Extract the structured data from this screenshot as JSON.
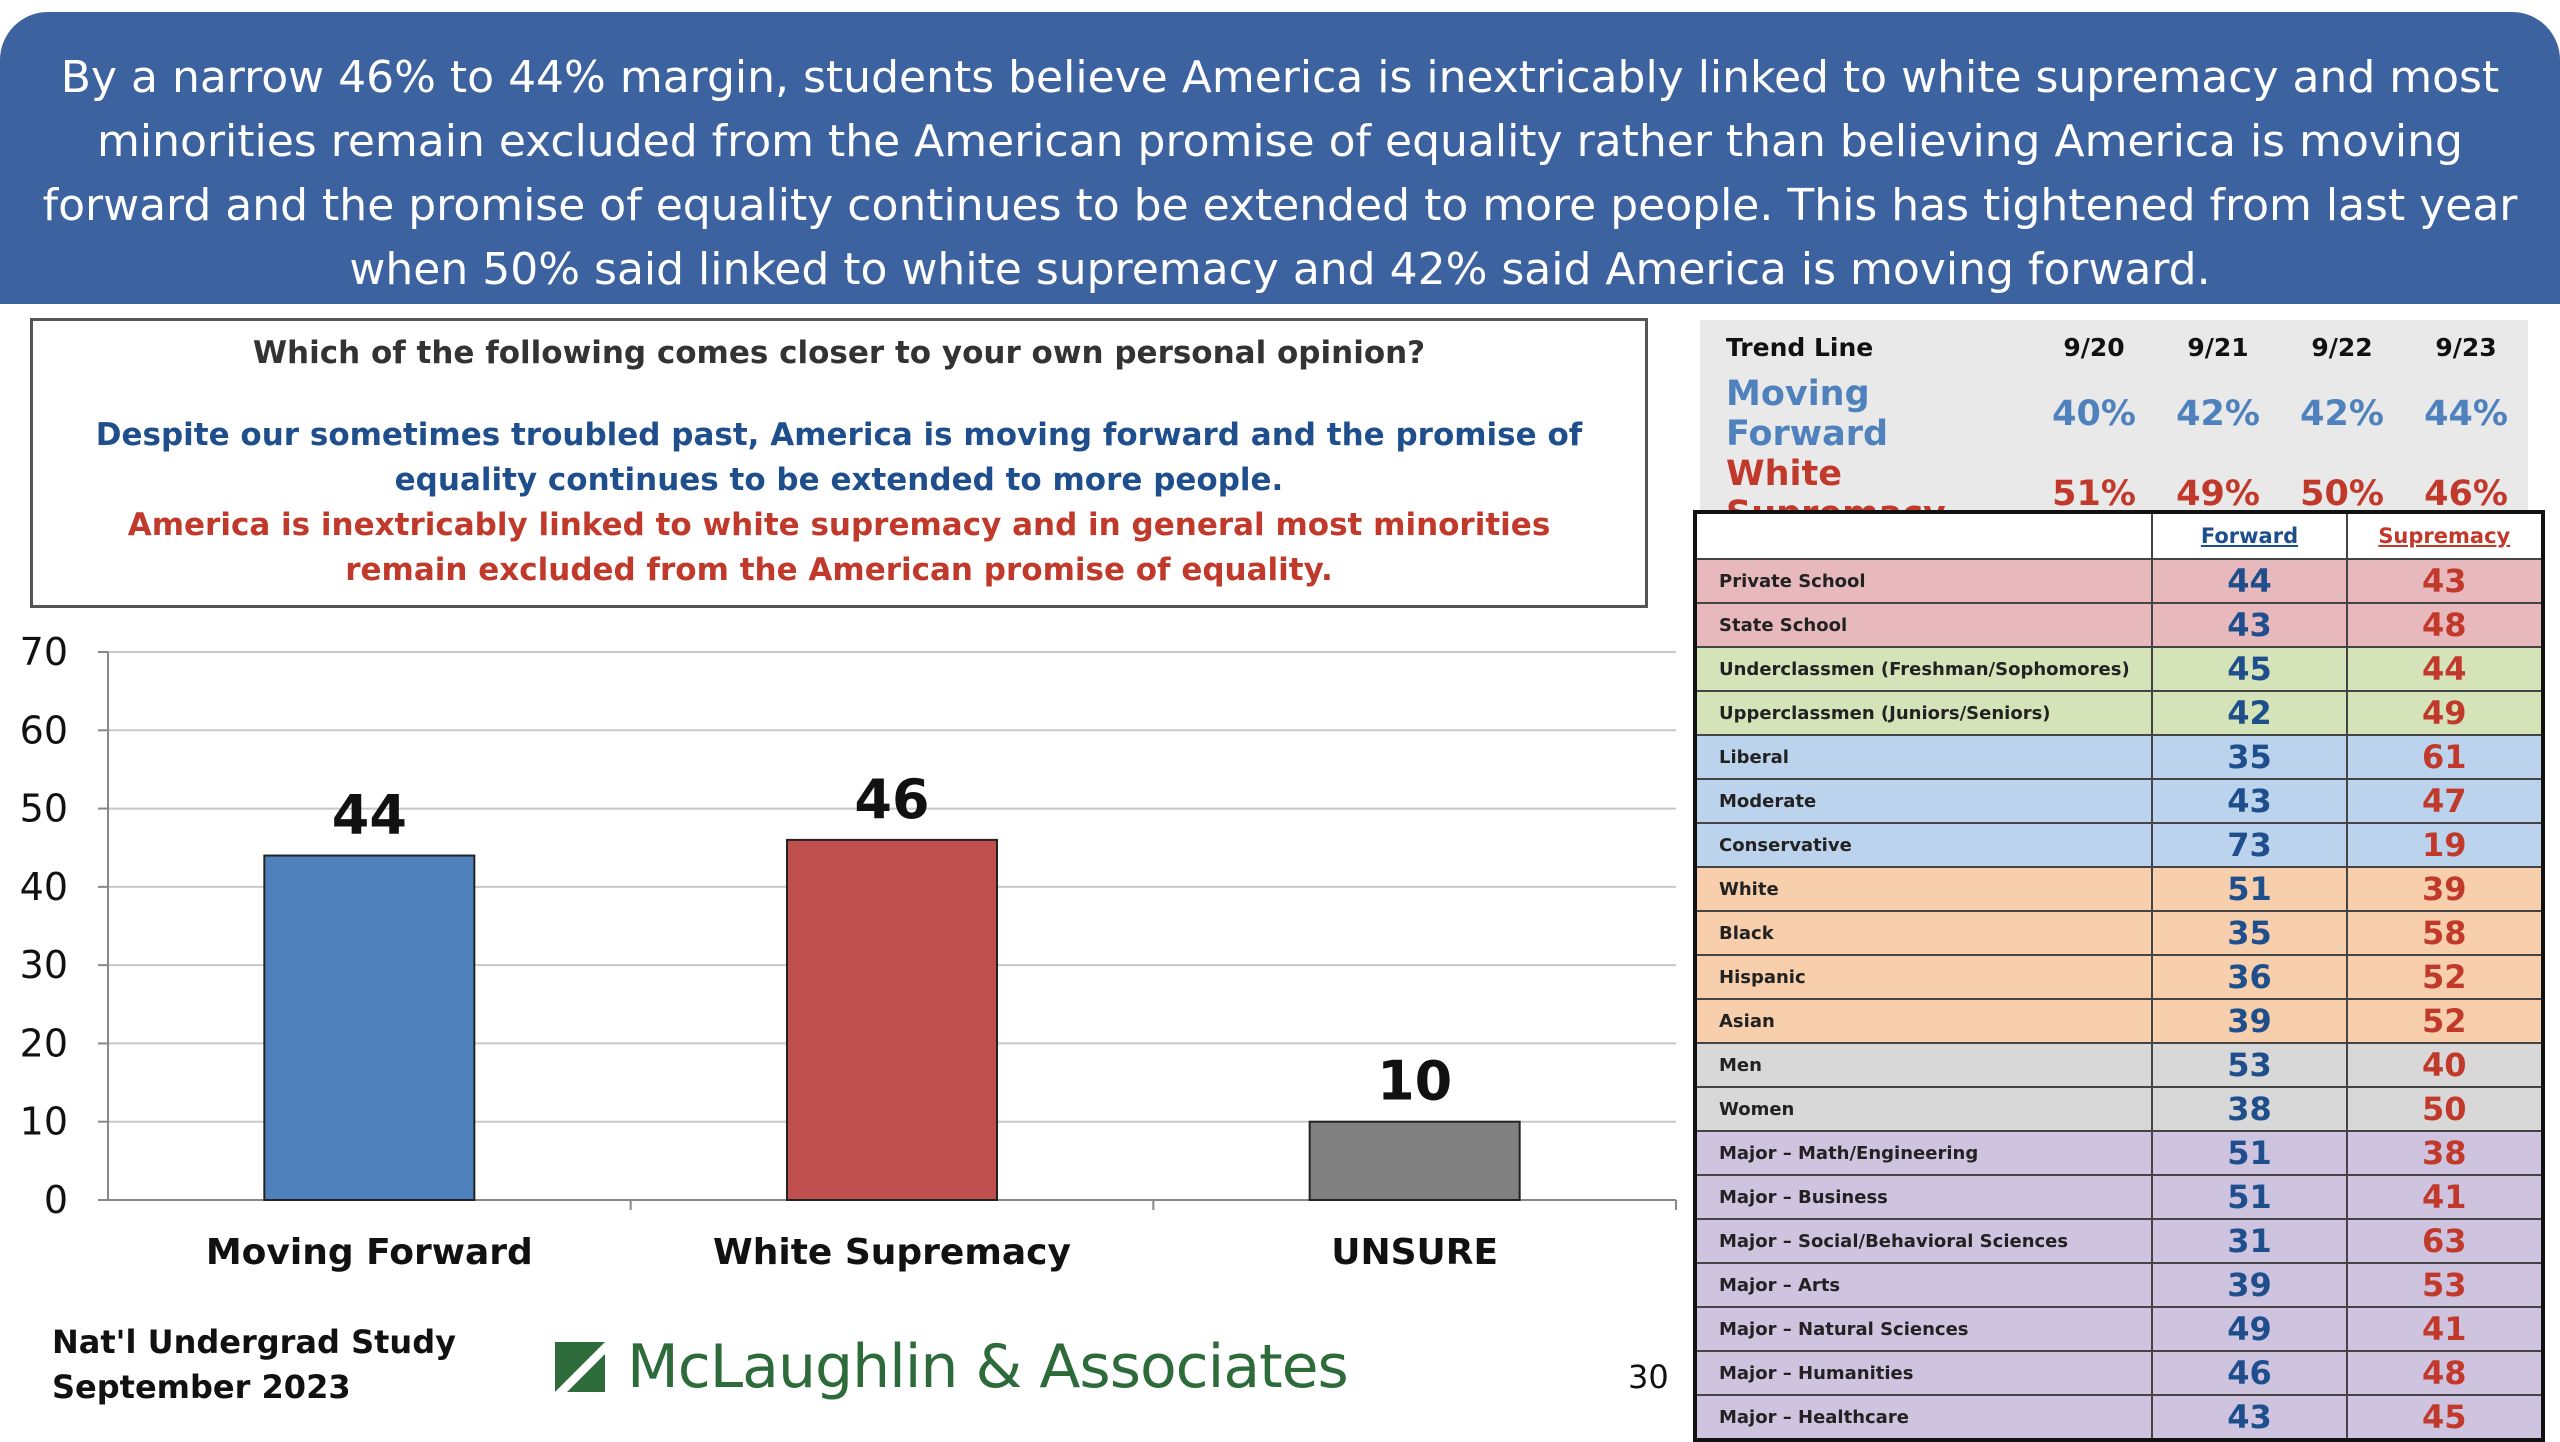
{
  "banner": {
    "text": "By a narrow 46% to 44% margin, students believe America is inextricably linked to white supremacy and most minorities remain excluded from the American promise of equality rather than believing America is moving forward and the promise of equality continues to be extended to more people. This has tightened from last year when 50% said linked to white supremacy and 42% said America is moving forward."
  },
  "question": {
    "prompt": "Which of the following comes closer to your own personal opinion?",
    "forward_statement": "Despite our sometimes troubled past, America is moving forward and the promise of equality continues to be extended to more people.",
    "supremacy_statement": "America is inextricably linked to white supremacy and in general most minorities remain excluded from the American promise of equality."
  },
  "colors": {
    "forward": "#4f81bd",
    "supremacy": "#c0504d",
    "unsure": "#808080",
    "forward_text": "#1f4e8c",
    "supremacy_text": "#c0392b"
  },
  "chart_data": {
    "type": "bar",
    "categories": [
      "Moving Forward",
      "White Supremacy",
      "UNSURE"
    ],
    "values": [
      44,
      46,
      10
    ],
    "data_labels": [
      "44",
      "46",
      "10"
    ],
    "ylim": [
      0,
      70
    ],
    "yticks": [
      0,
      10,
      20,
      30,
      40,
      50,
      60,
      70
    ],
    "grid": true
  },
  "trend": {
    "header": "Trend Line",
    "dates": [
      "9/20",
      "9/21",
      "9/22",
      "9/23"
    ],
    "rows": [
      {
        "label": "Moving Forward",
        "values": [
          "40%",
          "42%",
          "42%",
          "44%"
        ]
      },
      {
        "label": "White Supremacy",
        "values": [
          "51%",
          "49%",
          "50%",
          "46%"
        ]
      }
    ]
  },
  "subgroups": {
    "col_forward": "Forward",
    "col_supremacy": "Supremacy",
    "rows": [
      {
        "name": "Private School",
        "forward": "44",
        "supremacy": "43",
        "group": "red"
      },
      {
        "name": "State School",
        "forward": "43",
        "supremacy": "48",
        "group": "red"
      },
      {
        "name": "Underclassmen (Freshman/Sophomores)",
        "forward": "45",
        "supremacy": "44",
        "group": "green"
      },
      {
        "name": "Upperclassmen (Juniors/Seniors)",
        "forward": "42",
        "supremacy": "49",
        "group": "green"
      },
      {
        "name": "Liberal",
        "forward": "35",
        "supremacy": "61",
        "group": "blue"
      },
      {
        "name": "Moderate",
        "forward": "43",
        "supremacy": "47",
        "group": "blue"
      },
      {
        "name": "Conservative",
        "forward": "73",
        "supremacy": "19",
        "group": "blue"
      },
      {
        "name": "White",
        "forward": "51",
        "supremacy": "39",
        "group": "orange"
      },
      {
        "name": "Black",
        "forward": "35",
        "supremacy": "58",
        "group": "orange"
      },
      {
        "name": "Hispanic",
        "forward": "36",
        "supremacy": "52",
        "group": "orange"
      },
      {
        "name": "Asian",
        "forward": "39",
        "supremacy": "52",
        "group": "orange"
      },
      {
        "name": "Men",
        "forward": "53",
        "supremacy": "40",
        "group": "gray"
      },
      {
        "name": "Women",
        "forward": "38",
        "supremacy": "50",
        "group": "gray"
      },
      {
        "name": "Major – Math/Engineering",
        "forward": "51",
        "supremacy": "38",
        "group": "purple"
      },
      {
        "name": "Major – Business",
        "forward": "51",
        "supremacy": "41",
        "group": "purple"
      },
      {
        "name": "Major – Social/Behavioral Sciences",
        "forward": "31",
        "supremacy": "63",
        "group": "purple"
      },
      {
        "name": "Major – Arts",
        "forward": "39",
        "supremacy": "53",
        "group": "purple"
      },
      {
        "name": "Major – Natural Sciences",
        "forward": "49",
        "supremacy": "41",
        "group": "purple"
      },
      {
        "name": "Major – Humanities",
        "forward": "46",
        "supremacy": "48",
        "group": "purple"
      },
      {
        "name": "Major – Healthcare",
        "forward": "43",
        "supremacy": "45",
        "group": "purple"
      }
    ]
  },
  "footer": {
    "line1": "Nat'l Undergrad Study",
    "line2": "September 2023",
    "logo_text": "McLaughlin & Associates",
    "page_number": "30"
  }
}
